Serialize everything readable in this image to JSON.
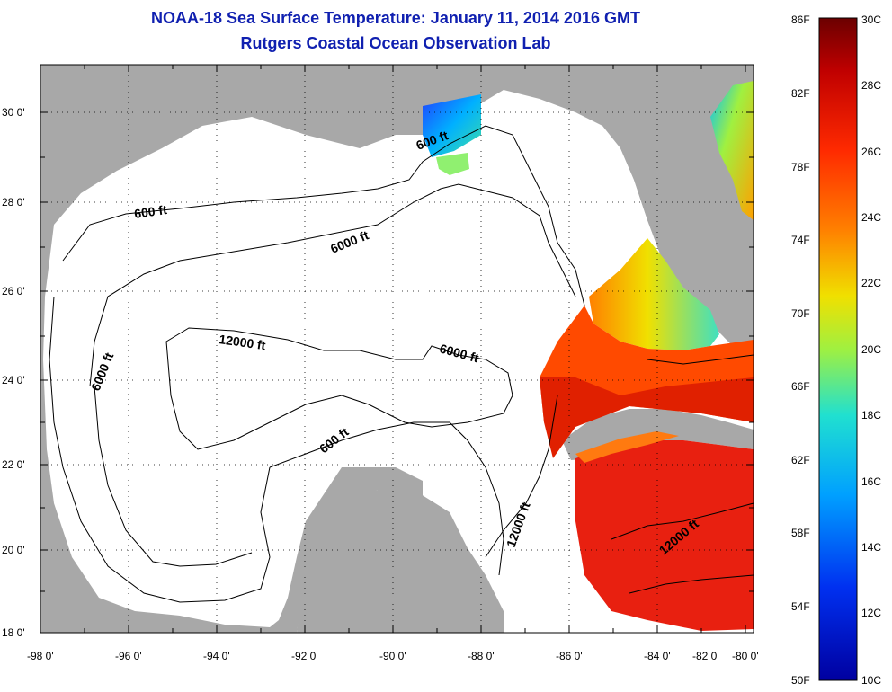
{
  "title": {
    "line1": "NOAA-18 Sea Surface Temperature:  January 11, 2014 2016 GMT",
    "line2": "Rutgers Coastal Ocean Observation Lab"
  },
  "map": {
    "lon_labels": [
      "-98 0'",
      "-96 0'",
      "-94 0'",
      "-92 0'",
      "-90 0'",
      "-88 0'",
      "-86 0'",
      "-84 0'",
      "-82 0'",
      "-80 0'"
    ],
    "lat_labels": [
      "30 0'",
      "28 0'",
      "26 0'",
      "24 0'",
      "22 0'",
      "20 0'",
      "18 0'"
    ],
    "land_color": "#a8a8a8",
    "ocean_color": "#ffffff",
    "contour_labels": [
      "600 ft",
      "600 ft",
      "6000 ft",
      "6000 ft",
      "12000 ft",
      "6000 ft",
      "600 ft",
      "12000 ft",
      "12000 ft"
    ]
  },
  "colorbar": {
    "f_labels": [
      "86F",
      "82F",
      "78F",
      "74F",
      "70F",
      "66F",
      "62F",
      "58F",
      "54F",
      "50F"
    ],
    "c_labels": [
      "30C",
      "28C",
      "26C",
      "24C",
      "22C",
      "20C",
      "18C",
      "16C",
      "14C",
      "12C",
      "10C"
    ],
    "colors": [
      "#6b0000",
      "#c80000",
      "#ff2000",
      "#ff7000",
      "#ffb000",
      "#f0f000",
      "#90ff60",
      "#20e0d0",
      "#00a0ff",
      "#0040ff",
      "#0000b0"
    ]
  }
}
